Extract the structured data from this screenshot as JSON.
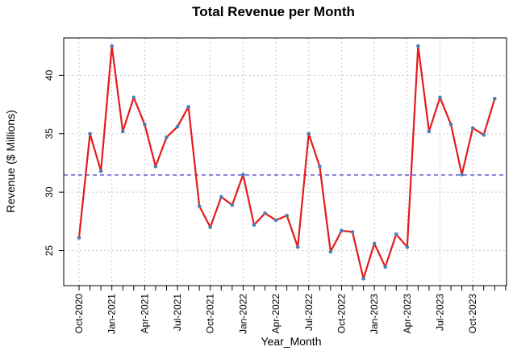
{
  "chart_data": {
    "type": "line",
    "title": "Total Revenue per Month",
    "xlabel": "Year_Month",
    "ylabel": "Revenue ($ Millions)",
    "x": [
      "2020-10",
      "2020-11",
      "2020-12",
      "2021-01",
      "2021-02",
      "2021-03",
      "2021-04",
      "2021-05",
      "2021-06",
      "2021-07",
      "2021-08",
      "2021-09",
      "2021-10",
      "2021-11",
      "2021-12",
      "2022-01",
      "2022-02",
      "2022-03",
      "2022-04",
      "2022-05",
      "2022-06",
      "2022-07",
      "2022-08",
      "2022-09",
      "2022-10",
      "2022-11",
      "2022-12",
      "2023-01",
      "2023-02",
      "2023-03",
      "2023-04",
      "2023-05",
      "2023-06",
      "2023-07",
      "2023-08",
      "2023-09",
      "2023-10",
      "2023-11",
      "2023-12"
    ],
    "x_tick_labels": [
      "Oct-2020",
      "Jan-2021",
      "Apr-2021",
      "Jul-2021",
      "Oct-2021",
      "Jan-2022",
      "Apr-2022",
      "Jul-2022",
      "Oct-2022",
      "Jan-2023",
      "Apr-2023",
      "Jul-2023",
      "Oct-2023"
    ],
    "series": [
      {
        "values": [
          26.1,
          35.0,
          31.8,
          42.5,
          35.2,
          38.1,
          35.8,
          32.2,
          34.7,
          35.6,
          37.3,
          28.8,
          27.0,
          29.6,
          28.9,
          31.5,
          27.2,
          28.2,
          27.6,
          28.0,
          25.3,
          35.0,
          32.2,
          24.9,
          26.7,
          26.6,
          22.6,
          25.6,
          23.6,
          26.4,
          25.3,
          42.5,
          35.2,
          38.1,
          35.8,
          31.5,
          35.5,
          34.9,
          38.0
        ],
        "line_color": "#e41a1c",
        "marker_color": "#4a7fb5"
      }
    ],
    "reference_line": {
      "value": 31.47,
      "color": "#3a3acf",
      "style": "dashed"
    },
    "y_ticks": [
      25,
      30,
      35,
      40
    ],
    "ylim": [
      22.0,
      43.2
    ],
    "grid": true
  }
}
